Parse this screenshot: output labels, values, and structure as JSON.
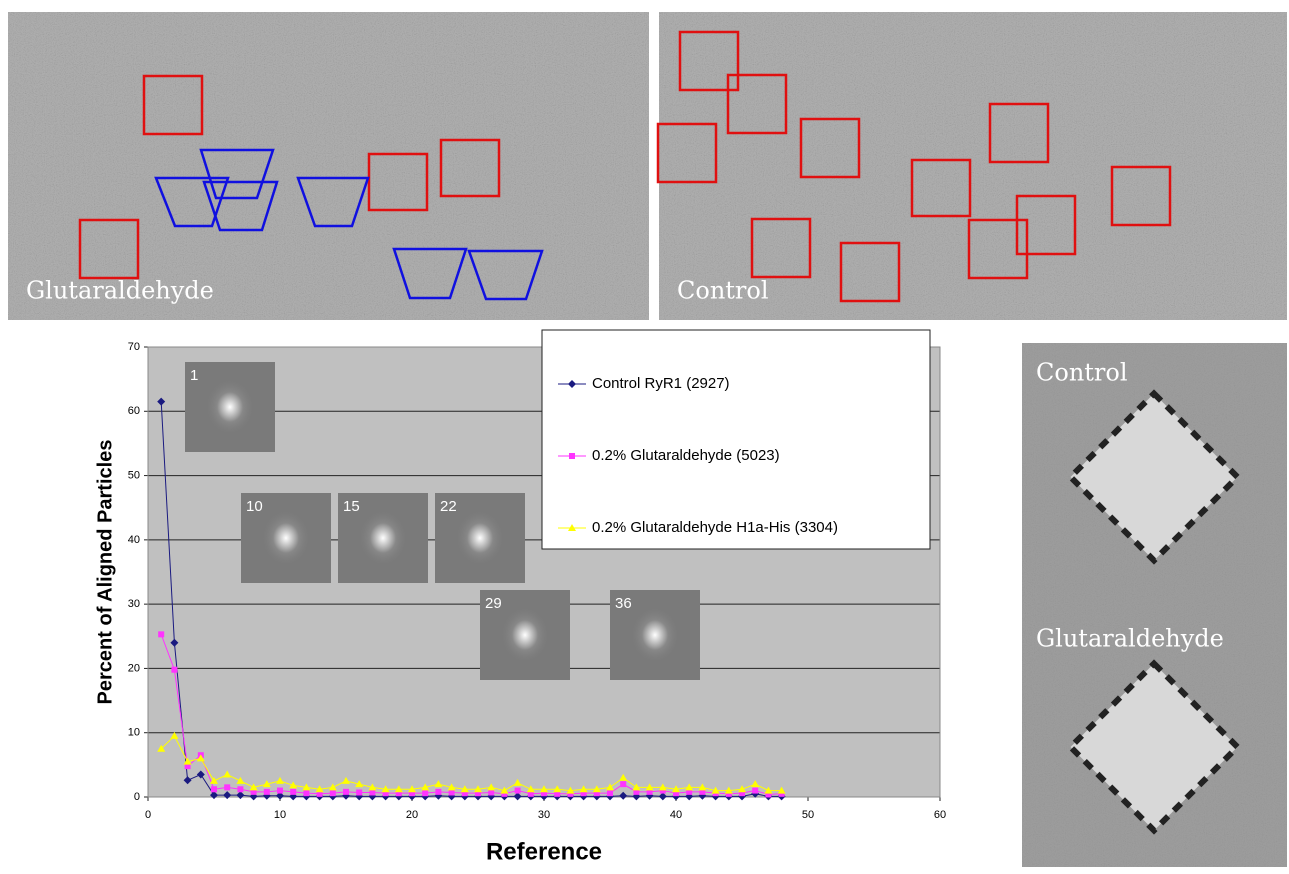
{
  "panels": {
    "micrograph_left": {
      "label": "Glutaraldehyde"
    },
    "micrograph_right": {
      "label": "Control"
    },
    "averages": {
      "top_label": "Control",
      "bottom_label": "Glutaraldehyde"
    }
  },
  "chart_data": {
    "type": "line",
    "xlabel": "Reference",
    "ylabel": "Percent of Aligned Particles",
    "xlim": [
      0,
      60
    ],
    "xticks": [
      0,
      10,
      20,
      30,
      40,
      50,
      60
    ],
    "ylim": [
      0,
      70
    ],
    "yticks": [
      0,
      10,
      20,
      30,
      40,
      50,
      60,
      70
    ],
    "grid": true,
    "legend": "upper right",
    "inset_labels": [
      1,
      10,
      15,
      22,
      29,
      36
    ],
    "x": [
      1,
      2,
      3,
      4,
      5,
      6,
      7,
      8,
      9,
      10,
      11,
      12,
      13,
      14,
      15,
      16,
      17,
      18,
      19,
      20,
      21,
      22,
      23,
      24,
      25,
      26,
      27,
      28,
      29,
      30,
      31,
      32,
      33,
      34,
      35,
      36,
      37,
      38,
      39,
      40,
      41,
      42,
      43,
      44,
      45,
      46,
      47,
      48
    ],
    "series": [
      {
        "name": "Control RyR1 (2927)",
        "color": "#1a1a80",
        "marker": "diamond",
        "values": [
          61.5,
          24,
          2.6,
          3.5,
          0.3,
          0.3,
          0.3,
          0.1,
          0.2,
          0.2,
          0.1,
          0.1,
          0.1,
          0.1,
          0.2,
          0.1,
          0.1,
          0.1,
          0.1,
          0.1,
          0.1,
          0.2,
          0.1,
          0.1,
          0.1,
          0.1,
          0.1,
          0.1,
          0.1,
          0.1,
          0.1,
          0.1,
          0.1,
          0.1,
          0.1,
          0.2,
          0.1,
          0.2,
          0.1,
          0.1,
          0.1,
          0.2,
          0.1,
          0.1,
          0.1,
          0.5,
          0.1,
          0.1
        ]
      },
      {
        "name": "0.2% Glutaraldehyde (5023)",
        "color": "#ff33ff",
        "marker": "square",
        "values": [
          25.3,
          19.8,
          4.8,
          6.5,
          1.2,
          1.5,
          1.2,
          0.8,
          0.8,
          1.0,
          0.8,
          0.6,
          0.5,
          0.6,
          0.8,
          0.7,
          0.7,
          0.6,
          0.6,
          0.6,
          0.6,
          0.8,
          0.7,
          0.6,
          0.6,
          0.7,
          0.5,
          1.0,
          0.5,
          0.6,
          0.5,
          0.5,
          0.6,
          0.6,
          0.6,
          2.0,
          0.8,
          0.8,
          1.0,
          0.6,
          0.8,
          0.8,
          0.6,
          0.5,
          0.6,
          1.0,
          0.4,
          0.5
        ]
      },
      {
        "name": "0.2% Glutaraldehyde H1a-His (3304)",
        "color": "#ffff00",
        "marker": "triangle",
        "values": [
          7.5,
          9.5,
          5.5,
          6.0,
          2.5,
          3.5,
          2.5,
          1.5,
          2.0,
          2.5,
          1.8,
          1.5,
          1.2,
          1.5,
          2.5,
          2.0,
          1.5,
          1.2,
          1.2,
          1.2,
          1.5,
          2.0,
          1.5,
          1.2,
          1.2,
          1.5,
          1.0,
          2.2,
          1.2,
          1.2,
          1.2,
          1.0,
          1.2,
          1.2,
          1.5,
          3.0,
          1.5,
          1.5,
          1.5,
          1.2,
          1.5,
          1.5,
          1.0,
          1.0,
          1.2,
          2.0,
          1.0,
          1.0
        ]
      }
    ]
  }
}
